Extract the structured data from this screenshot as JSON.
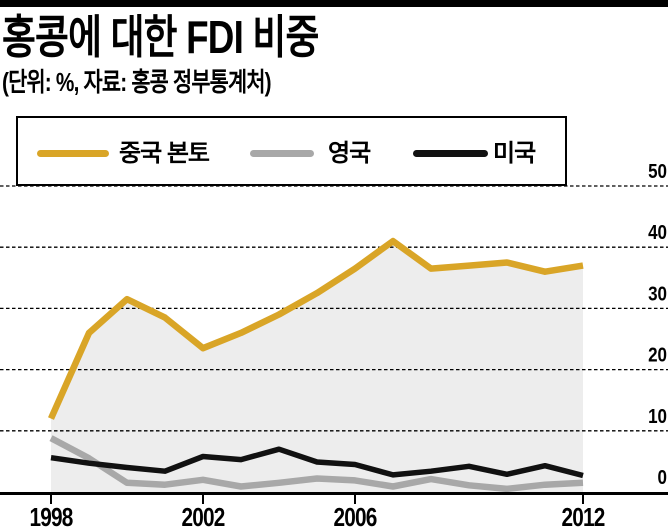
{
  "header": {
    "title": "홍콩에 대한 FDI 비중",
    "subtitle": "(단위: %, 자료: 홍콩 정부통계처)"
  },
  "chart_data": {
    "type": "line",
    "title": "홍콩에 대한 FDI 비중",
    "subtitle": "(단위: %, 자료: 홍콩 정부통계처)",
    "unit": "%",
    "source": "홍콩 정부통계처",
    "grid": "horizontal-dashed",
    "legend_position": "top",
    "x": [
      1998,
      1999,
      2000,
      2001,
      2002,
      2003,
      2004,
      2005,
      2006,
      2007,
      2008,
      2009,
      2010,
      2011,
      2012
    ],
    "x_tick_years": [
      1998,
      2002,
      2006,
      2012
    ],
    "x_tick_labels": [
      "1998",
      "2002",
      "2006",
      "2012"
    ],
    "y_ticks": [
      0,
      10,
      20,
      30,
      40,
      50
    ],
    "y_tick_labels": [
      "0",
      "10",
      "20",
      "30",
      "40",
      "50"
    ],
    "ylim": [
      0,
      50
    ],
    "series": [
      {
        "name": "중국 본토",
        "key": "china-mainland",
        "color": "#d9a527",
        "area_fill": "#ededed",
        "values": [
          12,
          26,
          31.5,
          28.5,
          23.5,
          26,
          29,
          32.5,
          36.5,
          41,
          36.5,
          37,
          37.5,
          36,
          37
        ]
      },
      {
        "name": "영국",
        "key": "uk",
        "color": "#a8a8a8",
        "values": [
          8.8,
          5.5,
          1.5,
          1.2,
          2,
          0.9,
          1.5,
          2.2,
          1.9,
          0.9,
          2.1,
          1.1,
          0.5,
          1.2,
          1.5
        ]
      },
      {
        "name": "미국",
        "key": "us",
        "color": "#111111",
        "values": [
          5.6,
          4.7,
          4,
          3.4,
          5.8,
          5.3,
          7,
          4.9,
          4.5,
          2.8,
          3.4,
          4.2,
          2.9,
          4.3,
          2.7
        ]
      }
    ]
  }
}
